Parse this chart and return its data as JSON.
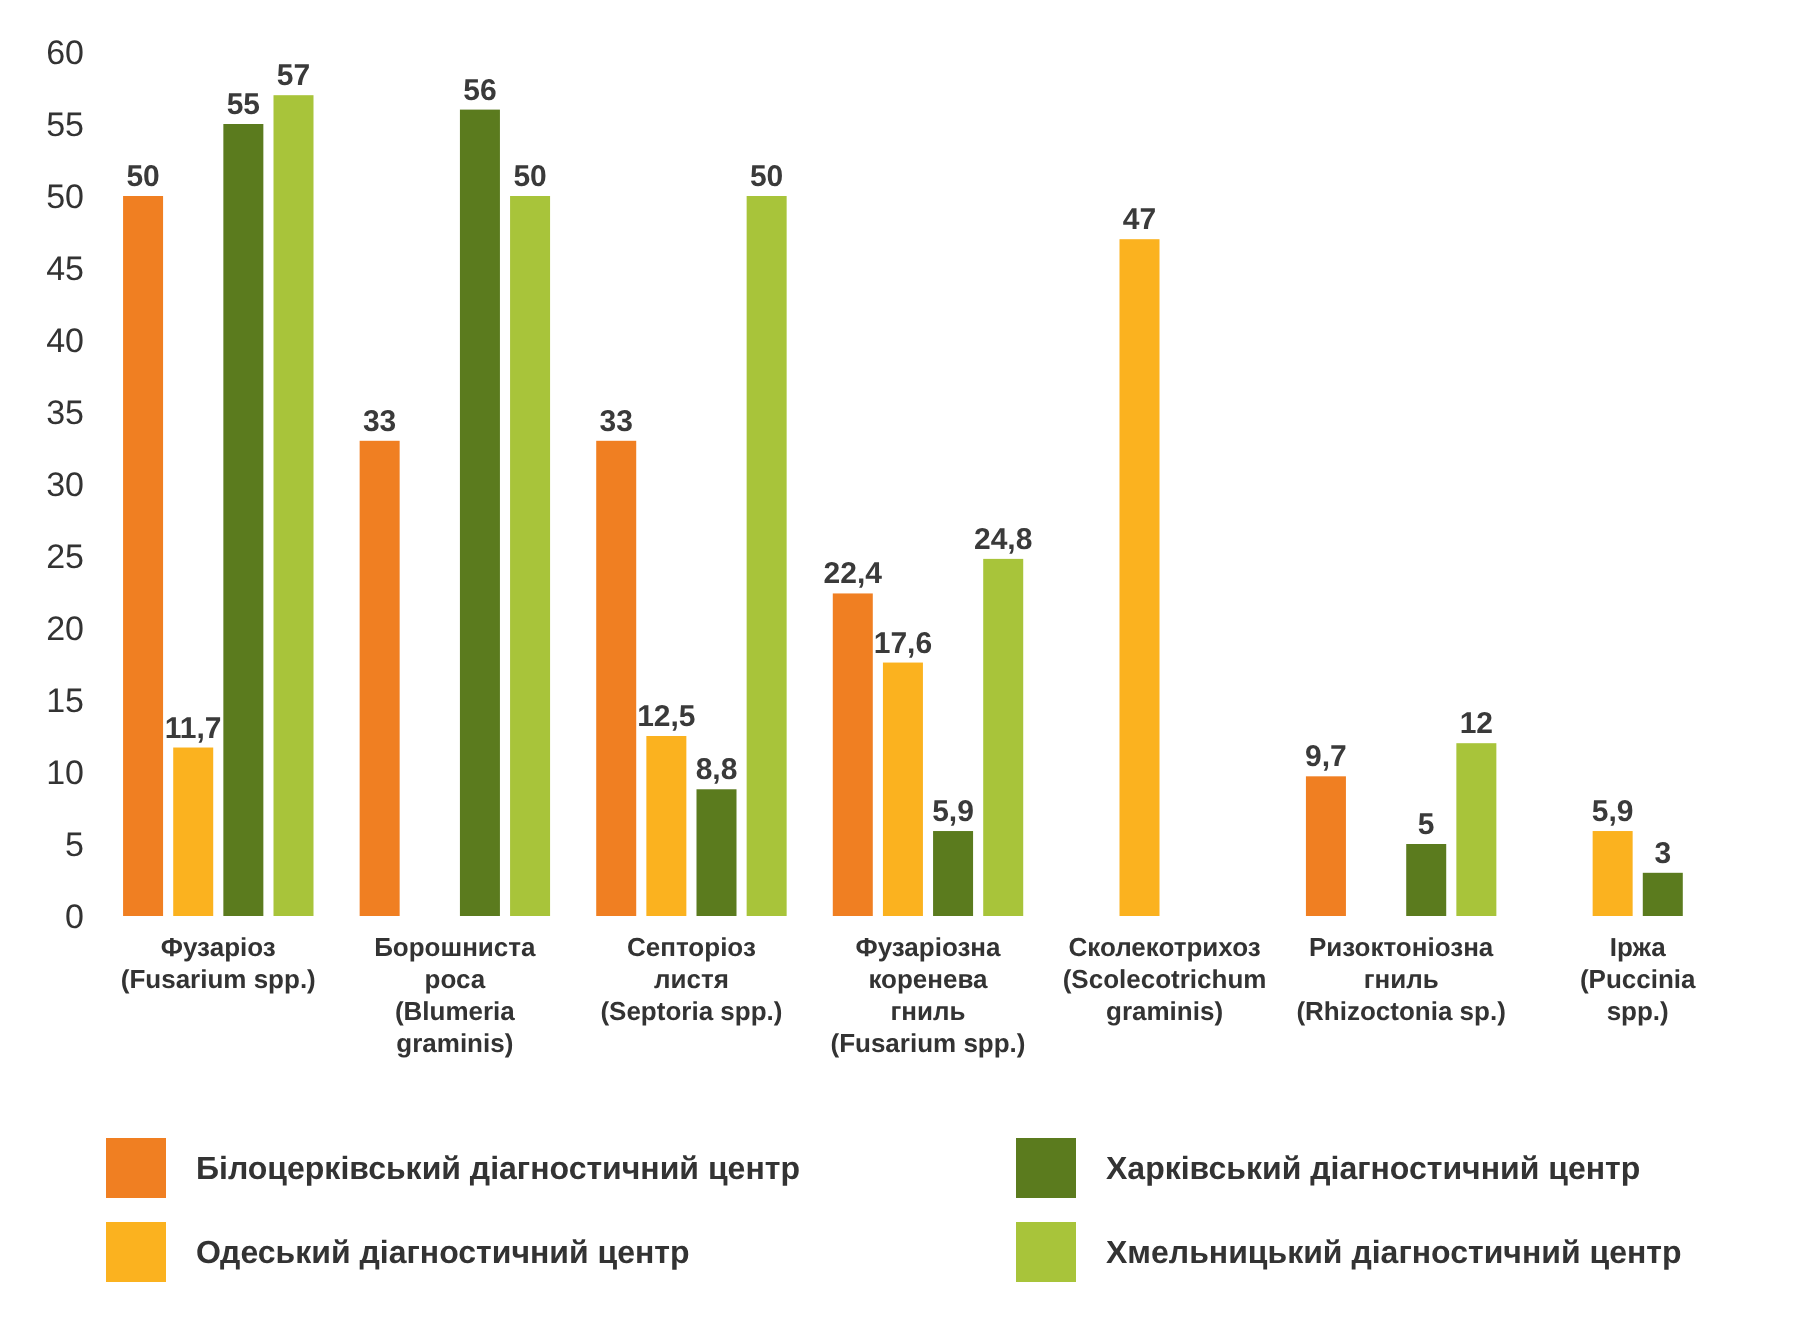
{
  "chart_data": {
    "type": "bar",
    "categories": [
      "Фузаріоз\n(Fusarium spp.)",
      "Борошниста\nроса\n(Blumeria\ngraminis)",
      "Септоріоз\nлистя\n(Septoria spp.)",
      "Фузаріозна\nкоренева\nгниль\n(Fusarium spp.)",
      "Сколекотрихоз\n(Scolecotrichum\ngraminis)",
      "Ризоктоніозна\nгниль\n(Rhizoctonia sp.)",
      "Іржа\n(Puccinia\nspp.)"
    ],
    "series": [
      {
        "name": "Білоцерківський діагностичний центр",
        "color": "#f07f22",
        "values": [
          50,
          33,
          33,
          22.4,
          null,
          9.7,
          null
        ],
        "value_labels": [
          "50",
          "33",
          "33",
          "22,4",
          null,
          "9,7",
          null
        ]
      },
      {
        "name": "Одеський діагностичний центр",
        "color": "#fbb21f",
        "values": [
          11.7,
          null,
          12.5,
          17.6,
          47,
          null,
          5.9
        ],
        "value_labels": [
          "11,7",
          null,
          "12,5",
          "17,6",
          "47",
          null,
          "5,9"
        ]
      },
      {
        "name": "Харківський діагностичний центр",
        "color": "#5b7b1e",
        "values": [
          55,
          56,
          8.8,
          5.9,
          null,
          5,
          3
        ],
        "value_labels": [
          "55",
          "56",
          "8,8",
          "5,9",
          null,
          "5",
          "3"
        ]
      },
      {
        "name": "Хмельницький діагностичний центр",
        "color": "#a8c43a",
        "values": [
          57,
          50,
          50,
          24.8,
          null,
          12,
          null
        ],
        "value_labels": [
          "57",
          "50",
          "50",
          "24,8",
          null,
          "12",
          null
        ]
      }
    ],
    "ylim": [
      0,
      60
    ],
    "yticks": [
      0,
      5,
      10,
      15,
      20,
      25,
      30,
      35,
      40,
      45,
      50,
      55,
      60
    ],
    "grid": false,
    "legend": "bottom"
  }
}
